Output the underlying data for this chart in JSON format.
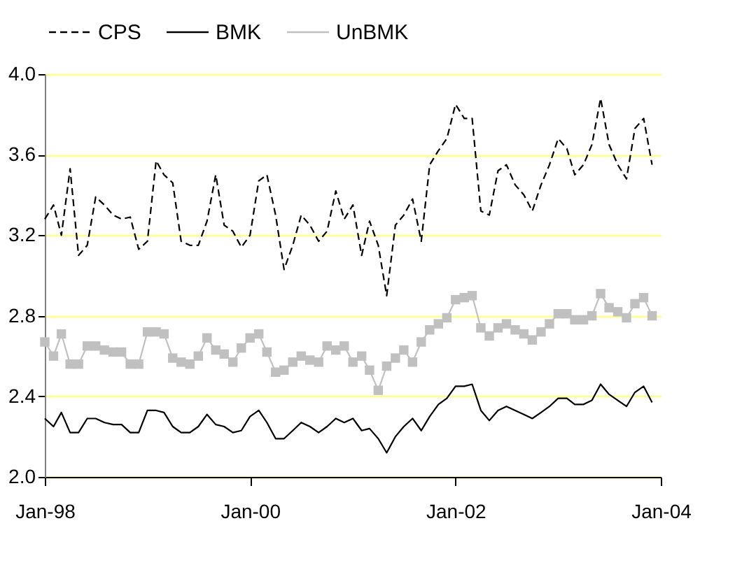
{
  "chart_data": {
    "type": "line",
    "x": [
      "1998-01",
      "1998-02",
      "1998-03",
      "1998-04",
      "1998-05",
      "1998-06",
      "1998-07",
      "1998-08",
      "1998-09",
      "1998-10",
      "1998-11",
      "1998-12",
      "1999-01",
      "1999-02",
      "1999-03",
      "1999-04",
      "1999-05",
      "1999-06",
      "1999-07",
      "1999-08",
      "1999-09",
      "1999-10",
      "1999-11",
      "1999-12",
      "2000-01",
      "2000-02",
      "2000-03",
      "2000-04",
      "2000-05",
      "2000-06",
      "2000-07",
      "2000-08",
      "2000-09",
      "2000-10",
      "2000-11",
      "2000-12",
      "2001-01",
      "2001-02",
      "2001-03",
      "2001-04",
      "2001-05",
      "2001-06",
      "2001-07",
      "2001-08",
      "2001-09",
      "2001-10",
      "2001-11",
      "2001-12",
      "2002-01",
      "2002-02",
      "2002-03",
      "2002-04",
      "2002-05",
      "2002-06",
      "2002-07",
      "2002-08",
      "2002-09",
      "2002-10",
      "2002-11",
      "2002-12",
      "2003-01",
      "2003-02",
      "2003-03",
      "2003-04",
      "2003-05",
      "2003-06",
      "2003-07",
      "2003-08",
      "2003-09",
      "2003-10",
      "2003-11",
      "2003-12"
    ],
    "series": [
      {
        "name": "CPS",
        "color": "#000000",
        "line_style": "dashed",
        "marker": "none",
        "values": [
          3.28,
          3.35,
          3.2,
          3.53,
          3.1,
          3.15,
          3.39,
          3.35,
          3.3,
          3.28,
          3.29,
          3.13,
          3.17,
          3.57,
          3.5,
          3.46,
          3.17,
          3.15,
          3.15,
          3.27,
          3.5,
          3.25,
          3.22,
          3.14,
          3.2,
          3.47,
          3.5,
          3.3,
          3.03,
          3.15,
          3.3,
          3.25,
          3.17,
          3.22,
          3.42,
          3.28,
          3.35,
          3.1,
          3.27,
          3.15,
          2.9,
          3.25,
          3.3,
          3.38,
          3.17,
          3.55,
          3.62,
          3.68,
          3.85,
          3.78,
          3.78,
          3.32,
          3.3,
          3.52,
          3.55,
          3.45,
          3.4,
          3.32,
          3.45,
          3.55,
          3.68,
          3.63,
          3.5,
          3.55,
          3.65,
          3.88,
          3.65,
          3.55,
          3.48,
          3.73,
          3.78,
          3.55
        ]
      },
      {
        "name": "BMK",
        "color": "#000000",
        "line_style": "solid",
        "marker": "none",
        "values": [
          2.29,
          2.25,
          2.32,
          2.22,
          2.22,
          2.29,
          2.29,
          2.27,
          2.26,
          2.26,
          2.22,
          2.22,
          2.33,
          2.33,
          2.32,
          2.25,
          2.22,
          2.22,
          2.25,
          2.31,
          2.26,
          2.25,
          2.22,
          2.23,
          2.3,
          2.33,
          2.27,
          2.19,
          2.19,
          2.23,
          2.27,
          2.25,
          2.22,
          2.25,
          2.29,
          2.27,
          2.29,
          2.23,
          2.24,
          2.19,
          2.12,
          2.2,
          2.25,
          2.29,
          2.23,
          2.3,
          2.36,
          2.39,
          2.45,
          2.45,
          2.46,
          2.33,
          2.28,
          2.33,
          2.35,
          2.33,
          2.31,
          2.29,
          2.32,
          2.35,
          2.39,
          2.39,
          2.36,
          2.36,
          2.38,
          2.46,
          2.41,
          2.38,
          2.35,
          2.42,
          2.45,
          2.37
        ]
      },
      {
        "name": "UnBMK",
        "color": "#c0c0c0",
        "line_style": "solid",
        "marker": "square",
        "values": [
          2.67,
          2.6,
          2.71,
          2.56,
          2.56,
          2.65,
          2.65,
          2.63,
          2.62,
          2.62,
          2.56,
          2.56,
          2.72,
          2.72,
          2.71,
          2.59,
          2.57,
          2.56,
          2.6,
          2.69,
          2.63,
          2.61,
          2.57,
          2.64,
          2.69,
          2.71,
          2.62,
          2.52,
          2.53,
          2.57,
          2.6,
          2.58,
          2.57,
          2.65,
          2.63,
          2.65,
          2.57,
          2.6,
          2.53,
          2.43,
          2.55,
          2.59,
          2.63,
          2.57,
          2.67,
          2.73,
          2.76,
          2.79,
          2.88,
          2.89,
          2.9,
          2.74,
          2.7,
          2.74,
          2.76,
          2.73,
          2.71,
          2.68,
          2.72,
          2.76,
          2.81,
          2.81,
          2.78,
          2.78,
          2.8,
          2.91,
          2.84,
          2.82,
          2.79,
          2.86,
          2.89,
          2.8
        ]
      }
    ],
    "xlim": [
      "1998-01",
      "2004-01"
    ],
    "xticks": [
      {
        "value": "1998-01",
        "label": "Jan-98"
      },
      {
        "value": "2000-01",
        "label": "Jan-00"
      },
      {
        "value": "2002-01",
        "label": "Jan-02"
      },
      {
        "value": "2004-01",
        "label": "Jan-04"
      }
    ],
    "ylim": [
      2.0,
      4.0
    ],
    "yticks": [
      {
        "value": 2,
        "label": "2.0"
      },
      {
        "value": 2.4,
        "label": "2.4"
      },
      {
        "value": 2.8,
        "label": "2.8"
      },
      {
        "value": 3.2,
        "label": "3.2"
      },
      {
        "value": 3.6,
        "label": "3.6"
      },
      {
        "value": 4,
        "label": "4.0"
      }
    ],
    "grid": "y",
    "legend": "top"
  }
}
